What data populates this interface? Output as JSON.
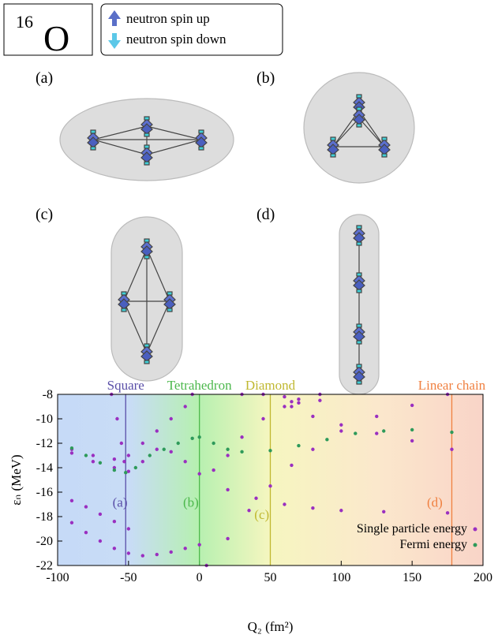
{
  "figure": {
    "nucleus_mass": "16",
    "nucleus_symbol": "O",
    "spin_up": "neutron spin up",
    "spin_down": "neutron spin down",
    "panels": [
      "(a)",
      "(b)",
      "(c)",
      "(d)"
    ]
  },
  "chart_data": {
    "type": "scatter",
    "xlabel": "Q₂ (fm²)",
    "ylabel": "εₙ (MeV)",
    "xlim": [
      -100,
      200
    ],
    "xticks": [
      -100,
      -50,
      0,
      50,
      100,
      150,
      200
    ],
    "ylim": [
      -22,
      -8
    ],
    "yticks": [
      -22,
      -20,
      -18,
      -16,
      -14,
      -12,
      -10,
      -8
    ],
    "vlines": [
      {
        "x": -52,
        "label": "Square",
        "marker": "(a)",
        "color": "#5a4fa8"
      },
      {
        "x": 0,
        "label": "Tetrahedron",
        "marker": "(b)",
        "color": "#4cb84c"
      },
      {
        "x": 50,
        "label": "Diamond",
        "marker": "(c)",
        "color": "#c0b830"
      },
      {
        "x": 178,
        "label": "Linear chain",
        "marker": "(d)",
        "color": "#f08040"
      }
    ],
    "legend": "lower right",
    "series": [
      {
        "name": "Single particle energy",
        "color": "#9a2fc0",
        "x": [
          5,
          20,
          35,
          50,
          65,
          80,
          100,
          125,
          150,
          175,
          -90,
          -80,
          -70,
          -60,
          -50,
          -40,
          -30,
          -20,
          -10,
          0,
          -90,
          -80,
          -70,
          -60,
          -50,
          -90,
          -75,
          -60,
          -50,
          -40,
          -30,
          -20,
          -10,
          -5,
          -90,
          -75,
          -60,
          -50,
          -40,
          -30,
          -20,
          -10,
          0,
          10,
          20,
          30,
          45,
          60,
          70,
          85,
          20,
          40,
          60,
          80,
          100,
          130,
          175,
          65,
          80,
          100,
          125,
          150,
          178,
          30,
          45,
          60,
          65,
          70,
          85,
          -62,
          -58,
          -55,
          -53
        ],
        "values": [
          -22,
          -19.8,
          -17.5,
          -15.5,
          -13.8,
          -12.5,
          -11,
          -9.8,
          -8.9,
          -8,
          -18.5,
          -19.3,
          -20,
          -20.6,
          -21,
          -21.2,
          -21.1,
          -20.9,
          -20.6,
          -20.3,
          -16.7,
          -17.2,
          -17.8,
          -18.4,
          -19,
          -12.5,
          -13,
          -13.3,
          -13,
          -12,
          -11,
          -10,
          -9,
          -8,
          -12.8,
          -13.5,
          -14,
          -14.3,
          -13.5,
          -12.5,
          -12.7,
          -13.5,
          -14.5,
          -14.2,
          -13,
          -11.5,
          -10,
          -9,
          -8.7,
          -8.5,
          -15.8,
          -16.5,
          -17,
          -17.3,
          -17.5,
          -17.6,
          -17.7,
          -9,
          -9.8,
          -10.5,
          -11.2,
          -11.8,
          -12.5,
          -8,
          -8,
          -8.2,
          -8.6,
          -8.4,
          -8,
          -8,
          -10,
          -12,
          -13.5
        ]
      },
      {
        "name": "Fermi energy",
        "color": "#2e9a5a",
        "x": [
          -90,
          -80,
          -70,
          -60,
          -52,
          -45,
          -35,
          -25,
          -15,
          -5,
          0,
          10,
          20,
          30,
          50,
          70,
          90,
          110,
          130,
          150,
          178
        ],
        "values": [
          -12.4,
          -13,
          -13.6,
          -14.2,
          -14.4,
          -14,
          -13,
          -12.5,
          -12,
          -11.6,
          -11.5,
          -12,
          -12.5,
          -12.7,
          -12.6,
          -12.2,
          -11.7,
          -11.2,
          -11,
          -10.9,
          -11.1
        ]
      }
    ]
  }
}
